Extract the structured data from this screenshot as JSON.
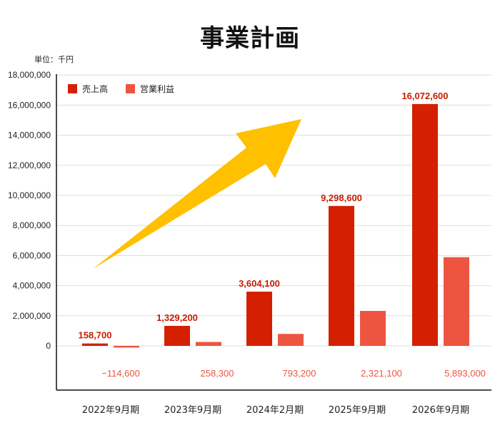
{
  "chart_data": {
    "type": "bar",
    "title": "事業計画",
    "unit_note": "単位：千円",
    "categories": [
      "2022年9月期",
      "2023年9月期",
      "2024年2月期",
      "2025年9月期",
      "2026年9月期"
    ],
    "series": [
      {
        "name": "売上高",
        "color": "#d42000",
        "values": [
          158700,
          1329200,
          3604100,
          9298600,
          16072600
        ],
        "labels": [
          "158,700",
          "1,329,200",
          "3,604,100",
          "9,298,600",
          "16,072,600"
        ]
      },
      {
        "name": "営業利益",
        "color": "#ee5540",
        "values": [
          -114600,
          258300,
          793200,
          2321100,
          5893000
        ],
        "labels": [
          "−114,600",
          "258,300",
          "793,200",
          "2,321,100",
          "5,893,000"
        ]
      }
    ],
    "y_ticks": [
      "0",
      "2,000,000",
      "4,000,000",
      "6,000,000",
      "8,000,000",
      "10,000,000",
      "12,000,000",
      "14,000,000",
      "16,000,000",
      "18,000,000"
    ],
    "ylim": [
      -3000000,
      18000000
    ],
    "grid": true,
    "legend_position": "top-left",
    "annotation": "upward-trend-arrow"
  }
}
